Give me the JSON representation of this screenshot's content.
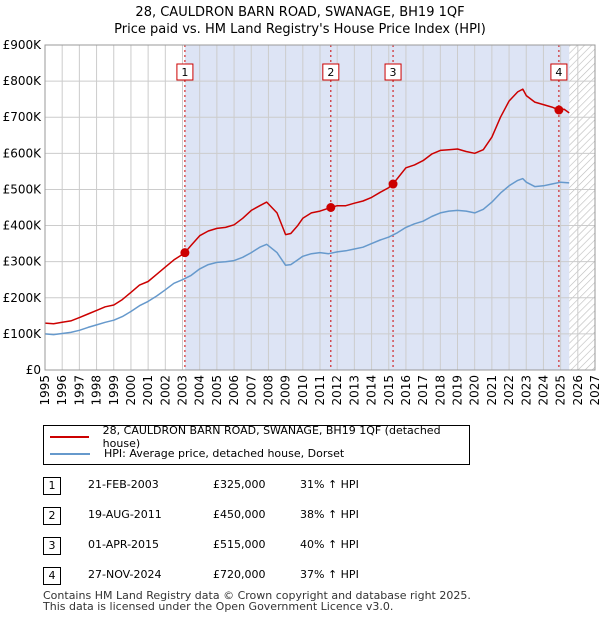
{
  "title": {
    "line1": "28, CAULDRON BARN ROAD, SWANAGE, BH19 1QF",
    "line2": "Price paid vs. HM Land Registry's House Price Index (HPI)"
  },
  "legend": {
    "property_label": "28, CAULDRON BARN ROAD, SWANAGE, BH19 1QF (detached house)",
    "hpi_label": "HPI: Average price, detached house, Dorset"
  },
  "sales": [
    {
      "num": "1",
      "date": "21-FEB-2003",
      "price": "£325,000",
      "hpi": "31% ↑ HPI"
    },
    {
      "num": "2",
      "date": "19-AUG-2011",
      "price": "£450,000",
      "hpi": "38% ↑ HPI"
    },
    {
      "num": "3",
      "date": "01-APR-2015",
      "price": "£515,000",
      "hpi": "40% ↑ HPI"
    },
    {
      "num": "4",
      "date": "27-NOV-2024",
      "price": "£720,000",
      "hpi": "37% ↑ HPI"
    }
  ],
  "footer": {
    "line1": "Contains HM Land Registry data © Crown copyright and database right 2025.",
    "line2": "This data is licensed under the Open Government Licence v3.0."
  },
  "colors": {
    "property": "#cc0000",
    "hpi": "#6699cc",
    "shade": "#dde4f5",
    "grid": "#cccccc"
  },
  "chart_data": {
    "type": "line",
    "title": "Price paid vs. HM Land Registry's House Price Index (HPI)",
    "xlabel": "",
    "ylabel": "",
    "xlim": [
      1995,
      2027
    ],
    "ylim": [
      0,
      900000
    ],
    "x_ticks": [
      1995,
      1996,
      1997,
      1998,
      1999,
      2000,
      2001,
      2002,
      2003,
      2004,
      2005,
      2006,
      2007,
      2008,
      2009,
      2010,
      2011,
      2012,
      2013,
      2014,
      2015,
      2016,
      2017,
      2018,
      2019,
      2020,
      2021,
      2022,
      2023,
      2024,
      2025,
      2026,
      2027
    ],
    "y_ticks": [
      0,
      100000,
      200000,
      300000,
      400000,
      500000,
      600000,
      700000,
      800000,
      900000
    ],
    "y_tick_labels": [
      "£0",
      "£100K",
      "£200K",
      "£300K",
      "£400K",
      "£500K",
      "£600K",
      "£700K",
      "£800K",
      "£900K"
    ],
    "shaded_from": 2003.14,
    "forecast_from": 2025.5,
    "series": [
      {
        "name": "28, CAULDRON BARN ROAD, SWANAGE, BH19 1QF (detached house)",
        "x": [
          1995,
          1995.5,
          1996,
          1996.5,
          1997,
          1997.5,
          1998,
          1998.5,
          1999,
          1999.5,
          2000,
          2000.5,
          2001,
          2001.5,
          2002,
          2002.5,
          2003,
          2003.14,
          2003.5,
          2004,
          2004.5,
          2005,
          2005.5,
          2006,
          2006.5,
          2007,
          2007.5,
          2007.9,
          2008.5,
          2009,
          2009.3,
          2009.7,
          2010,
          2010.5,
          2011,
          2011.63,
          2012,
          2012.5,
          2013,
          2013.5,
          2014,
          2014.5,
          2015,
          2015.25,
          2015.5,
          2016,
          2016.5,
          2017,
          2017.5,
          2018,
          2018.5,
          2019,
          2019.5,
          2020,
          2020.5,
          2021,
          2021.5,
          2022,
          2022.5,
          2022.8,
          2023,
          2023.5,
          2024,
          2024.5,
          2024.9,
          2025.2,
          2025.5
        ],
        "y": [
          130000,
          128000,
          132000,
          136000,
          145000,
          155000,
          165000,
          175000,
          180000,
          195000,
          215000,
          235000,
          245000,
          265000,
          285000,
          305000,
          320000,
          325000,
          345000,
          372000,
          385000,
          392000,
          395000,
          402000,
          420000,
          442000,
          455000,
          465000,
          435000,
          375000,
          378000,
          400000,
          420000,
          435000,
          440000,
          450000,
          455000,
          455000,
          462000,
          468000,
          478000,
          492000,
          505000,
          515000,
          530000,
          560000,
          568000,
          580000,
          598000,
          608000,
          610000,
          612000,
          605000,
          600000,
          610000,
          645000,
          700000,
          745000,
          770000,
          778000,
          760000,
          742000,
          735000,
          728000,
          720000,
          722000,
          712000
        ]
      },
      {
        "name": "HPI: Average price, detached house, Dorset",
        "x": [
          1995,
          1995.5,
          1996,
          1996.5,
          1997,
          1997.5,
          1998,
          1998.5,
          1999,
          1999.5,
          2000,
          2000.5,
          2001,
          2001.5,
          2002,
          2002.5,
          2003,
          2003.5,
          2004,
          2004.5,
          2005,
          2005.5,
          2006,
          2006.5,
          2007,
          2007.5,
          2007.9,
          2008.5,
          2009,
          2009.3,
          2009.7,
          2010,
          2010.5,
          2011,
          2011.5,
          2012,
          2012.5,
          2013,
          2013.5,
          2014,
          2014.5,
          2015,
          2015.5,
          2016,
          2016.5,
          2017,
          2017.5,
          2018,
          2018.5,
          2019,
          2019.5,
          2020,
          2020.5,
          2021,
          2021.5,
          2022,
          2022.5,
          2022.8,
          2023,
          2023.5,
          2024,
          2024.5,
          2025,
          2025.5
        ],
        "y": [
          100000,
          98000,
          101000,
          104000,
          110000,
          118000,
          125000,
          132000,
          138000,
          148000,
          162000,
          178000,
          190000,
          205000,
          222000,
          240000,
          250000,
          262000,
          280000,
          292000,
          298000,
          300000,
          303000,
          312000,
          325000,
          340000,
          348000,
          325000,
          290000,
          292000,
          305000,
          315000,
          322000,
          325000,
          322000,
          327000,
          330000,
          335000,
          340000,
          350000,
          360000,
          368000,
          380000,
          395000,
          405000,
          412000,
          425000,
          435000,
          440000,
          442000,
          440000,
          435000,
          445000,
          465000,
          490000,
          510000,
          525000,
          530000,
          520000,
          508000,
          510000,
          515000,
          520000,
          518000
        ]
      }
    ],
    "sales_markers": [
      {
        "label": "1",
        "x": 2003.14,
        "y": 325000
      },
      {
        "label": "2",
        "x": 2011.63,
        "y": 450000
      },
      {
        "label": "3",
        "x": 2015.25,
        "y": 515000
      },
      {
        "label": "4",
        "x": 2024.9,
        "y": 720000
      }
    ]
  }
}
